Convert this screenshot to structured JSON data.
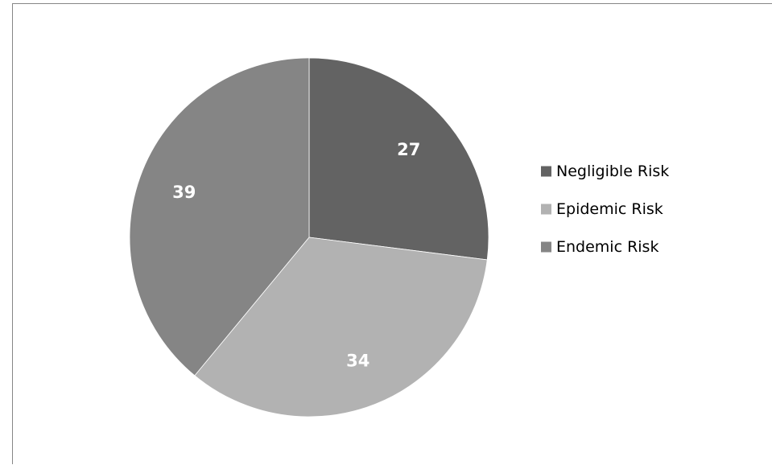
{
  "chart_data": {
    "type": "pie",
    "title": "",
    "categories": [
      "Negligible Risk",
      "Epidemic Risk",
      "Endemic Risk"
    ],
    "values": [
      27,
      34,
      39
    ],
    "data_labels": [
      "27",
      "34",
      "39"
    ],
    "colors": [
      "#636363",
      "#b2b2b2",
      "#858585"
    ],
    "start_angle_deg": 0,
    "direction": "clockwise",
    "legend": {
      "position": "right",
      "entries": [
        "Negligible Risk",
        "Epidemic Risk",
        "Endemic Risk"
      ]
    }
  }
}
